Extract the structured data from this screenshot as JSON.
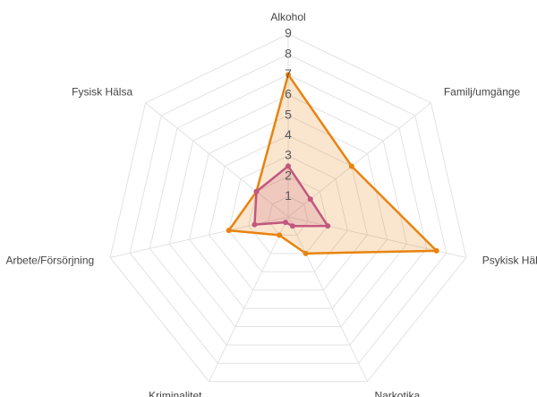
{
  "chart_data": {
    "type": "radar",
    "categories": [
      "Alkohol",
      "Familj/umgänge",
      "Psykisk Hälsa",
      "Narkotika",
      "Kriminalitet",
      "Arbete/Försörjning",
      "Fysisk Hälsa"
    ],
    "series": [
      {
        "color": "#e8830f",
        "values": [
          7,
          4,
          7.5,
          2,
          1,
          3,
          2
        ]
      },
      {
        "color": "#c2577e",
        "values": [
          2.5,
          1.4,
          2,
          0.5,
          0.3,
          1.7,
          2
        ]
      }
    ],
    "ylim": [
      0,
      9
    ],
    "yticks": [
      1,
      2,
      3,
      4,
      5,
      6,
      7,
      8,
      9
    ],
    "grid": true
  }
}
